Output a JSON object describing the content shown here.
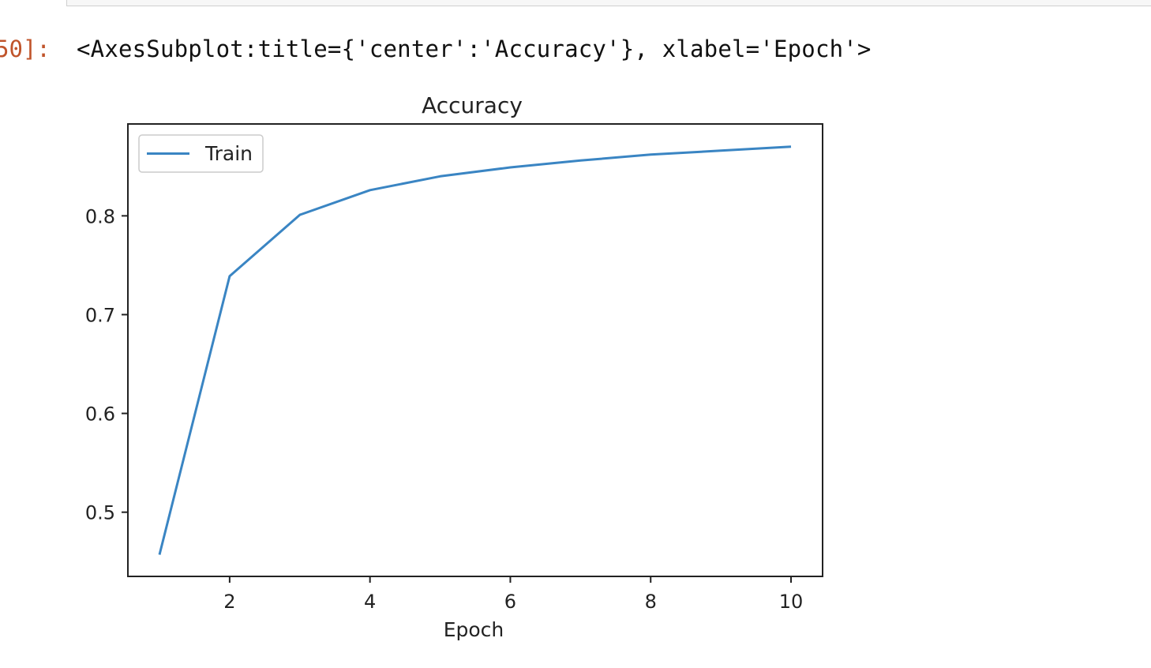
{
  "notebook": {
    "output_prompt": "50]:",
    "output_repr": "<AxesSubplot:title={'center':'Accuracy'}, xlabel='Epoch'>"
  },
  "colors": {
    "line": "#3a85c3",
    "axes": "#222222",
    "prompt": "#c0542b"
  },
  "chart_data": {
    "type": "line",
    "title": "Accuracy",
    "xlabel": "Epoch",
    "ylabel": "",
    "x": [
      1,
      2,
      3,
      4,
      5,
      6,
      7,
      8,
      9,
      10
    ],
    "series": [
      {
        "name": "Train",
        "values": [
          0.457,
          0.739,
          0.801,
          0.826,
          0.84,
          0.849,
          0.856,
          0.862,
          0.866,
          0.87
        ]
      }
    ],
    "xlim": [
      0.55,
      10.45
    ],
    "ylim": [
      0.435,
      0.893
    ],
    "xticks": [
      "2",
      "4",
      "6",
      "8",
      "10"
    ],
    "yticks": [
      "0.5",
      "0.6",
      "0.7",
      "0.8"
    ],
    "grid": false,
    "legend": "upper left"
  }
}
